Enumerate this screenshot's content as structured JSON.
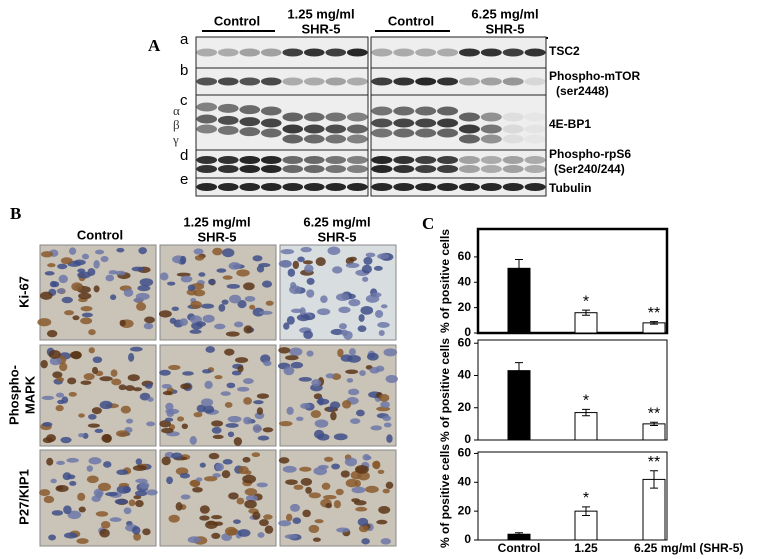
{
  "panel_a": {
    "letter": "A",
    "groups": [
      [
        "Control"
      ],
      [
        "1.25 mg/ml",
        "SHR-5"
      ],
      [
        "Control"
      ],
      [
        "6.25 mg/ml",
        "SHR-5"
      ]
    ],
    "row_letters": [
      "a",
      "b",
      "c",
      "d",
      "e"
    ],
    "row_labels": [
      [
        "TSC2"
      ],
      [
        "Phospho-mTOR",
        "(ser2448)"
      ],
      [
        "4E-BP1"
      ],
      [
        "Phospho-rpS6",
        "(Ser240/244)"
      ],
      [
        "Tubulin"
      ]
    ],
    "isoforms": [
      "α",
      "β",
      "γ"
    ]
  },
  "panel_b": {
    "letter": "B",
    "columns": [
      [
        "Control"
      ],
      [
        "1.25 mg/ml",
        "SHR-5"
      ],
      [
        "6.25 mg/ml",
        "SHR-5"
      ]
    ],
    "rows": [
      [
        "Ki-67"
      ],
      [
        "Phospho-",
        "MAPK"
      ],
      [
        "P27/KIP1"
      ]
    ]
  },
  "panel_c": {
    "letter": "C"
  },
  "chart_data": [
    {
      "type": "bar",
      "y_label": "% of positive cells",
      "values": [
        51,
        16,
        8
      ],
      "errors": [
        7,
        2,
        1
      ],
      "colors": [
        "#000000",
        "#ffffff",
        "#ffffff"
      ],
      "bar_labels": [
        null,
        "*",
        "**"
      ],
      "ylim": [
        0,
        82
      ],
      "yticks": [
        0,
        20,
        40,
        60
      ]
    },
    {
      "type": "bar",
      "y_label": "% of positive cells",
      "values": [
        43,
        17,
        10
      ],
      "errors": [
        5,
        2,
        1
      ],
      "colors": [
        "#000000",
        "#ffffff",
        "#ffffff"
      ],
      "bar_labels": [
        null,
        "*",
        "**"
      ],
      "ylim": [
        0,
        62
      ],
      "yticks": [
        0,
        20,
        40,
        60
      ]
    },
    {
      "type": "bar",
      "y_label": "% of positive cells",
      "categories": [
        "Control",
        "1.25",
        "6.25 mg/ml  (SHR-5)"
      ],
      "values": [
        4,
        20,
        42
      ],
      "errors": [
        1,
        3,
        6
      ],
      "colors": [
        "#000000",
        "#ffffff",
        "#ffffff"
      ],
      "bar_labels": [
        null,
        "*",
        "**"
      ],
      "ylim": [
        0,
        61
      ],
      "yticks": [
        0,
        20,
        40,
        60
      ]
    }
  ]
}
